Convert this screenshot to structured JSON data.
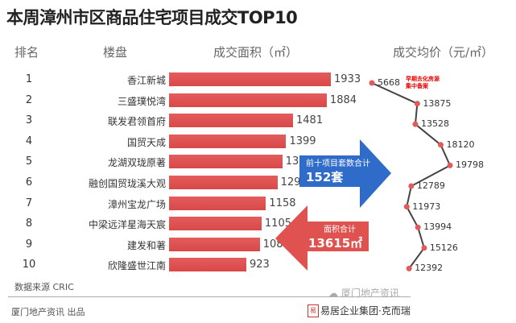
{
  "chart_data": {
    "type": "bar",
    "title": "本周漳州市区商品住宅项目成交TOP10",
    "headers": {
      "rank": "排名",
      "project": "楼盘",
      "area": "成交面积（㎡）",
      "price": "成交均价（元/㎡）"
    },
    "ranks": [
      "1",
      "2",
      "3",
      "4",
      "5",
      "6",
      "7",
      "8",
      "9",
      "10"
    ],
    "categories": [
      "香江新城",
      "三盛璞悦湾",
      "联发君领首府",
      "国贸天成",
      "龙湖双珑原著",
      "融创国贸珑溪大观",
      "漳州宝龙广场",
      "中梁远洋星海天宸",
      "建发和著",
      "欣隆盛世江南"
    ],
    "series": [
      {
        "name": "成交面积（㎡）",
        "type": "bar",
        "values": [
          1933,
          1884,
          1481,
          1399,
          1353,
          1295,
          1158,
          1105,
          1084,
          923
        ]
      },
      {
        "name": "成交均价（元/㎡）",
        "type": "line",
        "values": [
          5668,
          13875,
          13528,
          18120,
          19798,
          12789,
          11973,
          13994,
          15126,
          12392
        ]
      }
    ],
    "annotations": {
      "price_note": "早期去化房源集中备案",
      "units_label": "前十项目套数合计",
      "units_value": "152套",
      "area_label": "面积合计",
      "area_value": "13615㎡"
    },
    "colors": {
      "bar": "#dd4f4f",
      "arrow_blue": "#2f6bc9",
      "arrow_red": "#e0524f",
      "line": "#444444",
      "point": "#e35a5a"
    }
  },
  "footer": {
    "source": "数据来源  CRIC",
    "producer": "厦门地产资讯  出品",
    "wechat": "厦门地产资讯",
    "brand": "易居企业集团·克而瑞"
  },
  "watermark": "厦门地产资讯 (ID:CRICXM)"
}
